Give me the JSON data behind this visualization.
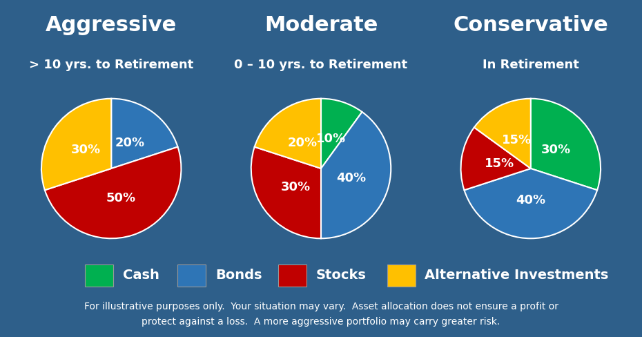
{
  "background_color": "#2e5f8a",
  "pie_area_background": "#ffffff",
  "titles": [
    "Aggressive",
    "Moderate",
    "Conservative"
  ],
  "subtitles": [
    "> 10 yrs. to Retirement",
    "0 – 10 yrs. to Retirement",
    "In Retirement"
  ],
  "pies": [
    {
      "labels": [
        "Bonds",
        "Stocks",
        "Alternative Investments"
      ],
      "values": [
        20,
        50,
        30
      ],
      "colors": [
        "#2e75b6",
        "#c00000",
        "#ffc000"
      ],
      "text_labels": [
        "20%",
        "50%",
        "30%"
      ],
      "startangle": 90
    },
    {
      "labels": [
        "Cash",
        "Bonds",
        "Stocks",
        "Alternative Investments"
      ],
      "values": [
        10,
        40,
        30,
        20
      ],
      "colors": [
        "#00b050",
        "#2e75b6",
        "#c00000",
        "#ffc000"
      ],
      "text_labels": [
        "10%",
        "40%",
        "30%",
        "20%"
      ],
      "startangle": 90
    },
    {
      "labels": [
        "Cash",
        "Bonds",
        "Stocks",
        "Alternative Investments"
      ],
      "values": [
        30,
        40,
        15,
        15
      ],
      "colors": [
        "#00b050",
        "#2e75b6",
        "#c00000",
        "#ffc000"
      ],
      "text_labels": [
        "30%",
        "40%",
        "15%",
        "15%"
      ],
      "startangle": 90
    }
  ],
  "legend_items": [
    {
      "label": "Cash",
      "color": "#00b050"
    },
    {
      "label": "Bonds",
      "color": "#2e75b6"
    },
    {
      "label": "Stocks",
      "color": "#c00000"
    },
    {
      "label": "Alternative Investments",
      "color": "#ffc000"
    }
  ],
  "disclaimer": "For illustrative purposes only.  Your situation may vary.  Asset allocation does not ensure a profit or\nprotect against a loss.  A more aggressive portfolio may carry greater risk.",
  "title_fontsize": 22,
  "subtitle_fontsize": 13,
  "label_fontsize": 13,
  "legend_fontsize": 14,
  "disclaimer_fontsize": 10
}
